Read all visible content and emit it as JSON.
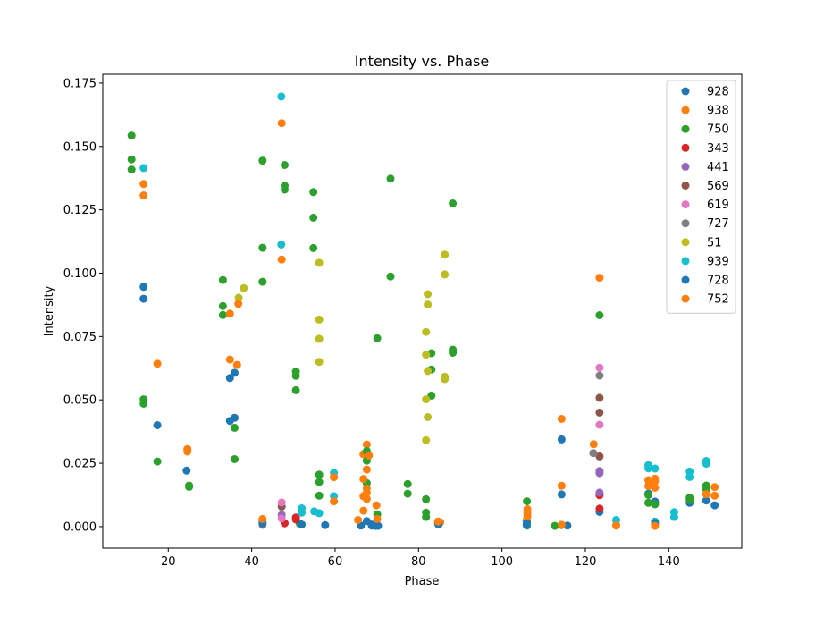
{
  "chart_data": {
    "type": "scatter",
    "title": "Intensity vs. Phase",
    "xlabel": "Phase",
    "ylabel": "Intensity",
    "xlim": [
      4.3,
      157.5
    ],
    "ylim": [
      -0.0085,
      0.1785
    ],
    "xticks": [
      20,
      40,
      60,
      80,
      100,
      120,
      140
    ],
    "yticks": [
      0.0,
      0.025,
      0.05,
      0.075,
      0.1,
      0.125,
      0.15,
      0.175
    ],
    "ytick_labels": [
      "0.000",
      "0.025",
      "0.050",
      "0.075",
      "0.100",
      "0.125",
      "0.150",
      "0.175"
    ],
    "legend_position": "top-right",
    "grid": false,
    "series": [
      {
        "name": "928",
        "color": "#1f77b4",
        "points": [
          [
            14.1,
            0.0946
          ],
          [
            14.1,
            0.0899
          ],
          [
            17.4,
            0.04
          ],
          [
            24.4,
            0.0221
          ],
          [
            34.8,
            0.0586
          ],
          [
            34.8,
            0.0417
          ],
          [
            35.9,
            0.0607
          ],
          [
            35.9,
            0.0429
          ],
          [
            42.6,
            0.0018
          ],
          [
            68.8,
            0.0008
          ],
          [
            84.7,
            0.0012
          ],
          [
            105.9,
            0.0024
          ],
          [
            114.3,
            0.0344
          ],
          [
            114.3,
            0.0127
          ],
          [
            123.4,
            0.0058
          ],
          [
            135.1,
            0.013
          ],
          [
            136.7,
            0.0099
          ],
          [
            145.0,
            0.0094
          ],
          [
            149.0,
            0.0103
          ],
          [
            151.0,
            0.0084
          ]
        ]
      },
      {
        "name": "938",
        "color": "#ff7f0e",
        "points": [
          [
            14.1,
            0.1352
          ],
          [
            14.1,
            0.1307
          ],
          [
            17.4,
            0.0643
          ],
          [
            24.6,
            0.0306
          ],
          [
            24.6,
            0.0296
          ],
          [
            34.8,
            0.0659
          ],
          [
            36.5,
            0.0638
          ],
          [
            47.2,
            0.1592
          ],
          [
            47.2,
            0.1054
          ],
          [
            66.8,
            0.0286
          ],
          [
            67.6,
            0.0324
          ],
          [
            67.6,
            0.0225
          ],
          [
            69.9,
            0.0084
          ],
          [
            85.2,
            0.0017
          ],
          [
            106.1,
            0.0069
          ],
          [
            114.3,
            0.0425
          ],
          [
            114.3,
            0.0161
          ],
          [
            122.0,
            0.0325
          ],
          [
            123.4,
            0.0982
          ],
          [
            127.4,
            0.0007
          ],
          [
            135.1,
            0.0183
          ],
          [
            136.7,
            0.0178
          ],
          [
            149.0,
            0.0155
          ],
          [
            151.0,
            0.0156
          ]
        ]
      },
      {
        "name": "750",
        "color": "#2ca02c",
        "points": [
          [
            11.2,
            0.1543
          ],
          [
            11.2,
            0.1449
          ],
          [
            11.2,
            0.1409
          ],
          [
            14.1,
            0.0502
          ],
          [
            14.1,
            0.0485
          ],
          [
            17.4,
            0.0257
          ],
          [
            25.0,
            0.0162
          ],
          [
            25.0,
            0.0157
          ],
          [
            33.1,
            0.0973
          ],
          [
            33.1,
            0.087
          ],
          [
            33.1,
            0.0835
          ],
          [
            35.9,
            0.039
          ],
          [
            35.9,
            0.0266
          ],
          [
            42.6,
            0.1444
          ],
          [
            42.6,
            0.11
          ],
          [
            42.6,
            0.0966
          ],
          [
            47.9,
            0.1427
          ],
          [
            47.9,
            0.1345
          ],
          [
            47.9,
            0.133
          ],
          [
            50.6,
            0.0612
          ],
          [
            50.6,
            0.0595
          ],
          [
            50.6,
            0.0538
          ],
          [
            51.5,
            0.0012
          ],
          [
            54.8,
            0.132
          ],
          [
            54.8,
            0.1219
          ],
          [
            54.8,
            0.1099
          ],
          [
            56.2,
            0.0205
          ],
          [
            56.2,
            0.0176
          ],
          [
            56.2,
            0.0122
          ],
          [
            67.6,
            0.0298
          ],
          [
            67.6,
            0.026
          ],
          [
            67.6,
            0.0172
          ],
          [
            70.1,
            0.0743
          ],
          [
            70.1,
            0.0048
          ],
          [
            73.3,
            0.1373
          ],
          [
            73.3,
            0.0987
          ],
          [
            77.4,
            0.0168
          ],
          [
            77.4,
            0.013
          ],
          [
            81.8,
            0.0108
          ],
          [
            81.8,
            0.0055
          ],
          [
            81.8,
            0.0038
          ],
          [
            83.1,
            0.0684
          ],
          [
            83.1,
            0.062
          ],
          [
            83.1,
            0.0517
          ],
          [
            88.2,
            0.1275
          ],
          [
            88.2,
            0.0698
          ],
          [
            88.2,
            0.0686
          ],
          [
            106.0,
            0.01
          ],
          [
            106.0,
            0.0004
          ],
          [
            112.7,
            0.0003
          ],
          [
            114.3,
            0.0006
          ],
          [
            123.4,
            0.0834
          ],
          [
            135.1,
            0.0125
          ],
          [
            135.1,
            0.0094
          ],
          [
            136.7,
            0.0088
          ],
          [
            145.0,
            0.0114
          ],
          [
            145.0,
            0.0105
          ],
          [
            149.0,
            0.0162
          ],
          [
            149.0,
            0.0147
          ]
        ]
      },
      {
        "name": "343",
        "color": "#d62728",
        "points": [
          [
            47.9,
            0.0013
          ],
          [
            50.6,
            0.0036
          ],
          [
            50.6,
            0.0028
          ],
          [
            123.4,
            0.0071
          ],
          [
            123.4,
            0.0124
          ]
        ]
      },
      {
        "name": "441",
        "color": "#9467bd",
        "points": [
          [
            47.2,
            0.0046
          ],
          [
            123.4,
            0.0219
          ],
          [
            123.4,
            0.0211
          ],
          [
            123.4,
            0.0134
          ]
        ]
      },
      {
        "name": "569",
        "color": "#8c564b",
        "points": [
          [
            47.2,
            0.0079
          ],
          [
            123.4,
            0.0508
          ],
          [
            123.4,
            0.045
          ],
          [
            123.4,
            0.0277
          ]
        ]
      },
      {
        "name": "619",
        "color": "#e377c2",
        "points": [
          [
            47.2,
            0.0095
          ],
          [
            47.2,
            0.0032
          ],
          [
            123.4,
            0.0627
          ],
          [
            123.4,
            0.0402
          ]
        ]
      },
      {
        "name": "727",
        "color": "#7f7f7f",
        "points": [
          [
            42.6,
            0.0007
          ],
          [
            121.9,
            0.029
          ],
          [
            123.4,
            0.0596
          ]
        ]
      },
      {
        "name": "51",
        "color": "#bcbd22",
        "points": [
          [
            36.9,
            0.0903
          ],
          [
            38.1,
            0.0941
          ],
          [
            56.2,
            0.1041
          ],
          [
            56.2,
            0.0817
          ],
          [
            56.2,
            0.0741
          ],
          [
            56.2,
            0.065
          ],
          [
            81.8,
            0.0768
          ],
          [
            81.8,
            0.0678
          ],
          [
            81.8,
            0.0502
          ],
          [
            81.8,
            0.0341
          ],
          [
            82.2,
            0.0917
          ],
          [
            82.2,
            0.0876
          ],
          [
            82.2,
            0.0614
          ],
          [
            82.2,
            0.0432
          ],
          [
            86.3,
            0.1073
          ],
          [
            86.3,
            0.0995
          ],
          [
            86.3,
            0.0591
          ],
          [
            86.3,
            0.0582
          ],
          [
            106.0,
            0.0024
          ]
        ]
      },
      {
        "name": "939",
        "color": "#17becf",
        "points": [
          [
            14.1,
            0.1415
          ],
          [
            47.1,
            0.1697
          ],
          [
            47.1,
            0.1113
          ],
          [
            52.0,
            0.0072
          ],
          [
            52.0,
            0.0055
          ],
          [
            55.0,
            0.006
          ],
          [
            56.2,
            0.0053
          ],
          [
            59.7,
            0.0212
          ],
          [
            59.7,
            0.012
          ],
          [
            127.4,
            0.0026
          ],
          [
            135.1,
            0.0242
          ],
          [
            135.1,
            0.023
          ],
          [
            136.7,
            0.0229
          ],
          [
            136.7,
            0.002
          ],
          [
            141.3,
            0.0057
          ],
          [
            141.3,
            0.0038
          ],
          [
            145.0,
            0.0217
          ],
          [
            145.0,
            0.0196
          ],
          [
            149.0,
            0.0259
          ],
          [
            149.0,
            0.0248
          ]
        ]
      },
      {
        "name": "728",
        "color": "#1f77b4",
        "points": [
          [
            42.6,
            0.0013
          ],
          [
            52.0,
            0.0008
          ],
          [
            57.6,
            0.0006
          ],
          [
            66.2,
            0.0004
          ],
          [
            67.6,
            0.0022
          ],
          [
            68.8,
            0.0004
          ],
          [
            69.6,
            0.0003
          ],
          [
            70.3,
            0.0003
          ],
          [
            84.8,
            0.0008
          ],
          [
            105.9,
            0.0007
          ],
          [
            106.0,
            0.0016
          ],
          [
            115.7,
            0.0004
          ],
          [
            136.7,
            0.0007
          ],
          [
            136.7,
            0.0014
          ]
        ]
      },
      {
        "name": "752",
        "color": "#ff7f0e",
        "points": [
          [
            36.8,
            0.0879
          ],
          [
            34.8,
            0.084
          ],
          [
            42.6,
            0.003
          ],
          [
            59.7,
            0.0195
          ],
          [
            59.7,
            0.01
          ],
          [
            65.5,
            0.0026
          ],
          [
            66.8,
            0.0188
          ],
          [
            66.8,
            0.012
          ],
          [
            66.8,
            0.0063
          ],
          [
            67.6,
            0.015
          ],
          [
            67.6,
            0.0133
          ],
          [
            67.6,
            0.0109
          ],
          [
            68.1,
            0.0281
          ],
          [
            70.1,
            0.003
          ],
          [
            84.7,
            0.002
          ],
          [
            106.1,
            0.0053
          ],
          [
            106.1,
            0.004
          ],
          [
            114.3,
            0.0007
          ],
          [
            127.4,
            0.0004
          ],
          [
            135.1,
            0.016
          ],
          [
            136.7,
            0.0189
          ],
          [
            136.7,
            0.0153
          ],
          [
            136.7,
            0.0003
          ],
          [
            149.0,
            0.0128
          ],
          [
            151.0,
            0.0122
          ]
        ]
      }
    ]
  }
}
